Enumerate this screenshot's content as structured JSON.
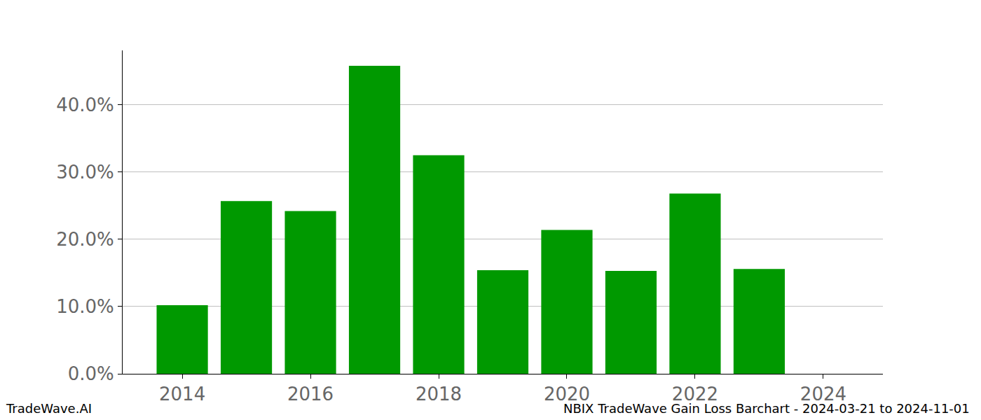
{
  "chart_data": {
    "type": "bar",
    "x": [
      2014,
      2015,
      2016,
      2017,
      2018,
      2019,
      2020,
      2021,
      2022,
      2023
    ],
    "values": [
      10.2,
      25.7,
      24.2,
      45.8,
      32.5,
      15.4,
      21.4,
      15.3,
      26.8,
      15.6
    ],
    "color": "#009900",
    "xlim": [
      2013.07,
      2024.93
    ],
    "xticks": [
      2014,
      2016,
      2018,
      2020,
      2022,
      2024
    ],
    "ylim": [
      0,
      48.1
    ],
    "yticks": [
      {
        "value": 0,
        "label": "0.0%"
      },
      {
        "value": 10,
        "label": "10.0%"
      },
      {
        "value": 20,
        "label": "20.0%"
      },
      {
        "value": 30,
        "label": "30.0%"
      },
      {
        "value": 40,
        "label": "40.0%"
      }
    ],
    "grid": true,
    "annotations": [
      "TradeWave.AI",
      "NBIX TradeWave Gain Loss Barchart - 2024-03-21 to 2024-11-01"
    ]
  }
}
